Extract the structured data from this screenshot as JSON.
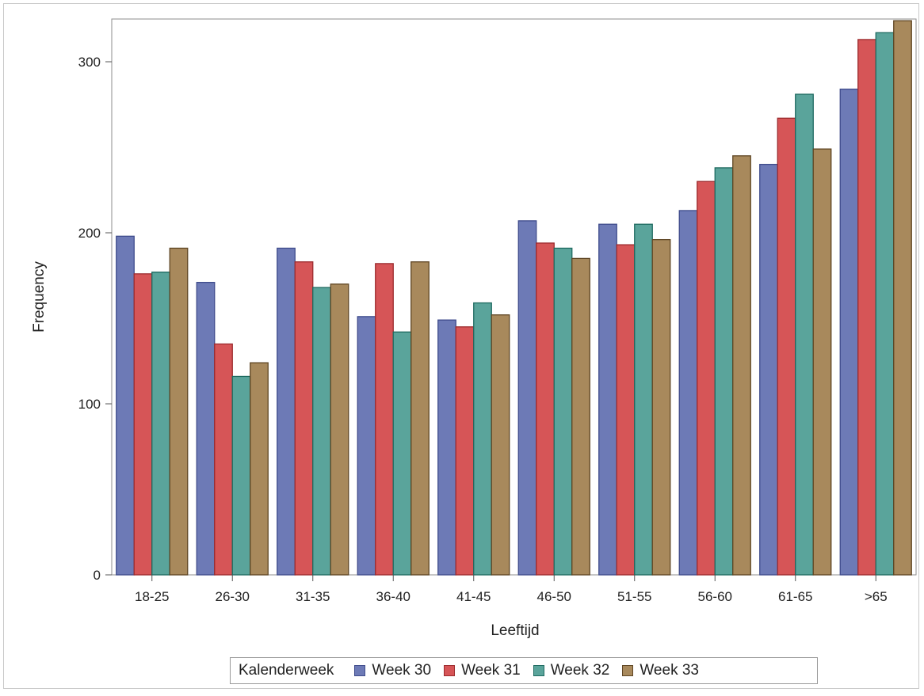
{
  "chart_data": {
    "type": "bar",
    "title": "",
    "xlabel": "Leeftijd",
    "ylabel": "Frequency",
    "ylim": [
      0,
      325
    ],
    "yticks": [
      0,
      100,
      200,
      300
    ],
    "categories": [
      "18-25",
      "26-30",
      "31-35",
      "36-40",
      "41-45",
      "46-50",
      "51-55",
      "56-60",
      "61-65",
      ">65"
    ],
    "legend_title": "Kalenderweek",
    "legend_position": "bottom",
    "grid": false,
    "series": [
      {
        "name": "Week 30",
        "color": "#6d7ab6",
        "edge": "#3f4c8c",
        "values": [
          198,
          171,
          191,
          151,
          149,
          207,
          205,
          213,
          240,
          284
        ]
      },
      {
        "name": "Week 31",
        "color": "#d65557",
        "edge": "#9c2b2e",
        "values": [
          176,
          135,
          183,
          182,
          145,
          194,
          193,
          230,
          267,
          313
        ]
      },
      {
        "name": "Week 32",
        "color": "#5aa49b",
        "edge": "#1e6a60",
        "values": [
          177,
          116,
          168,
          142,
          159,
          191,
          205,
          238,
          281,
          317
        ]
      },
      {
        "name": "Week 33",
        "color": "#a8895c",
        "edge": "#5e4523",
        "values": [
          191,
          124,
          170,
          183,
          152,
          185,
          196,
          245,
          249,
          324
        ]
      }
    ]
  }
}
